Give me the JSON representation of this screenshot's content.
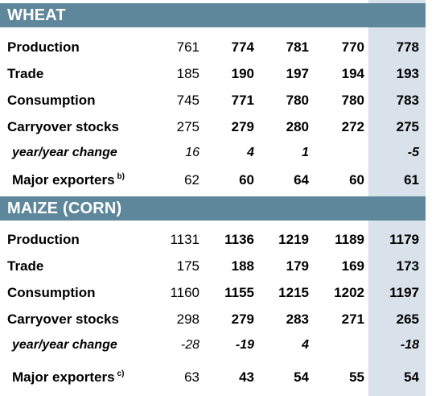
{
  "wheat": {
    "title": "WHEAT",
    "rows": [
      {
        "label": "Production",
        "values": [
          "761",
          "774",
          "781",
          "770",
          "778"
        ]
      },
      {
        "label": "Trade",
        "values": [
          "185",
          "190",
          "197",
          "194",
          "193"
        ]
      },
      {
        "label": "Consumption",
        "values": [
          "745",
          "771",
          "780",
          "780",
          "783"
        ]
      },
      {
        "label": "Carryover stocks",
        "values": [
          "275",
          "279",
          "280",
          "272",
          "275"
        ]
      },
      {
        "label": "year/year change",
        "values": [
          "16",
          "4",
          "1",
          "",
          "-5"
        ]
      },
      {
        "label": "Major exporters",
        "note": "b)",
        "values": [
          "62",
          "60",
          "64",
          "60",
          "61"
        ]
      }
    ]
  },
  "maize": {
    "title": "MAIZE (CORN)",
    "rows": [
      {
        "label": "Production",
        "values": [
          "1131",
          "1136",
          "1219",
          "1189",
          "1179"
        ]
      },
      {
        "label": "Trade",
        "values": [
          "175",
          "188",
          "179",
          "169",
          "173"
        ]
      },
      {
        "label": "Consumption",
        "values": [
          "1160",
          "1155",
          "1215",
          "1202",
          "1197"
        ]
      },
      {
        "label": "Carryover stocks",
        "values": [
          "298",
          "279",
          "283",
          "271",
          "265"
        ]
      },
      {
        "label": "year/year change",
        "values": [
          "-28",
          "-19",
          "4",
          "",
          "-18"
        ]
      },
      {
        "label": "Major exporters",
        "note": "c)",
        "values": [
          "63",
          "43",
          "54",
          "55",
          "54"
        ]
      }
    ]
  }
}
